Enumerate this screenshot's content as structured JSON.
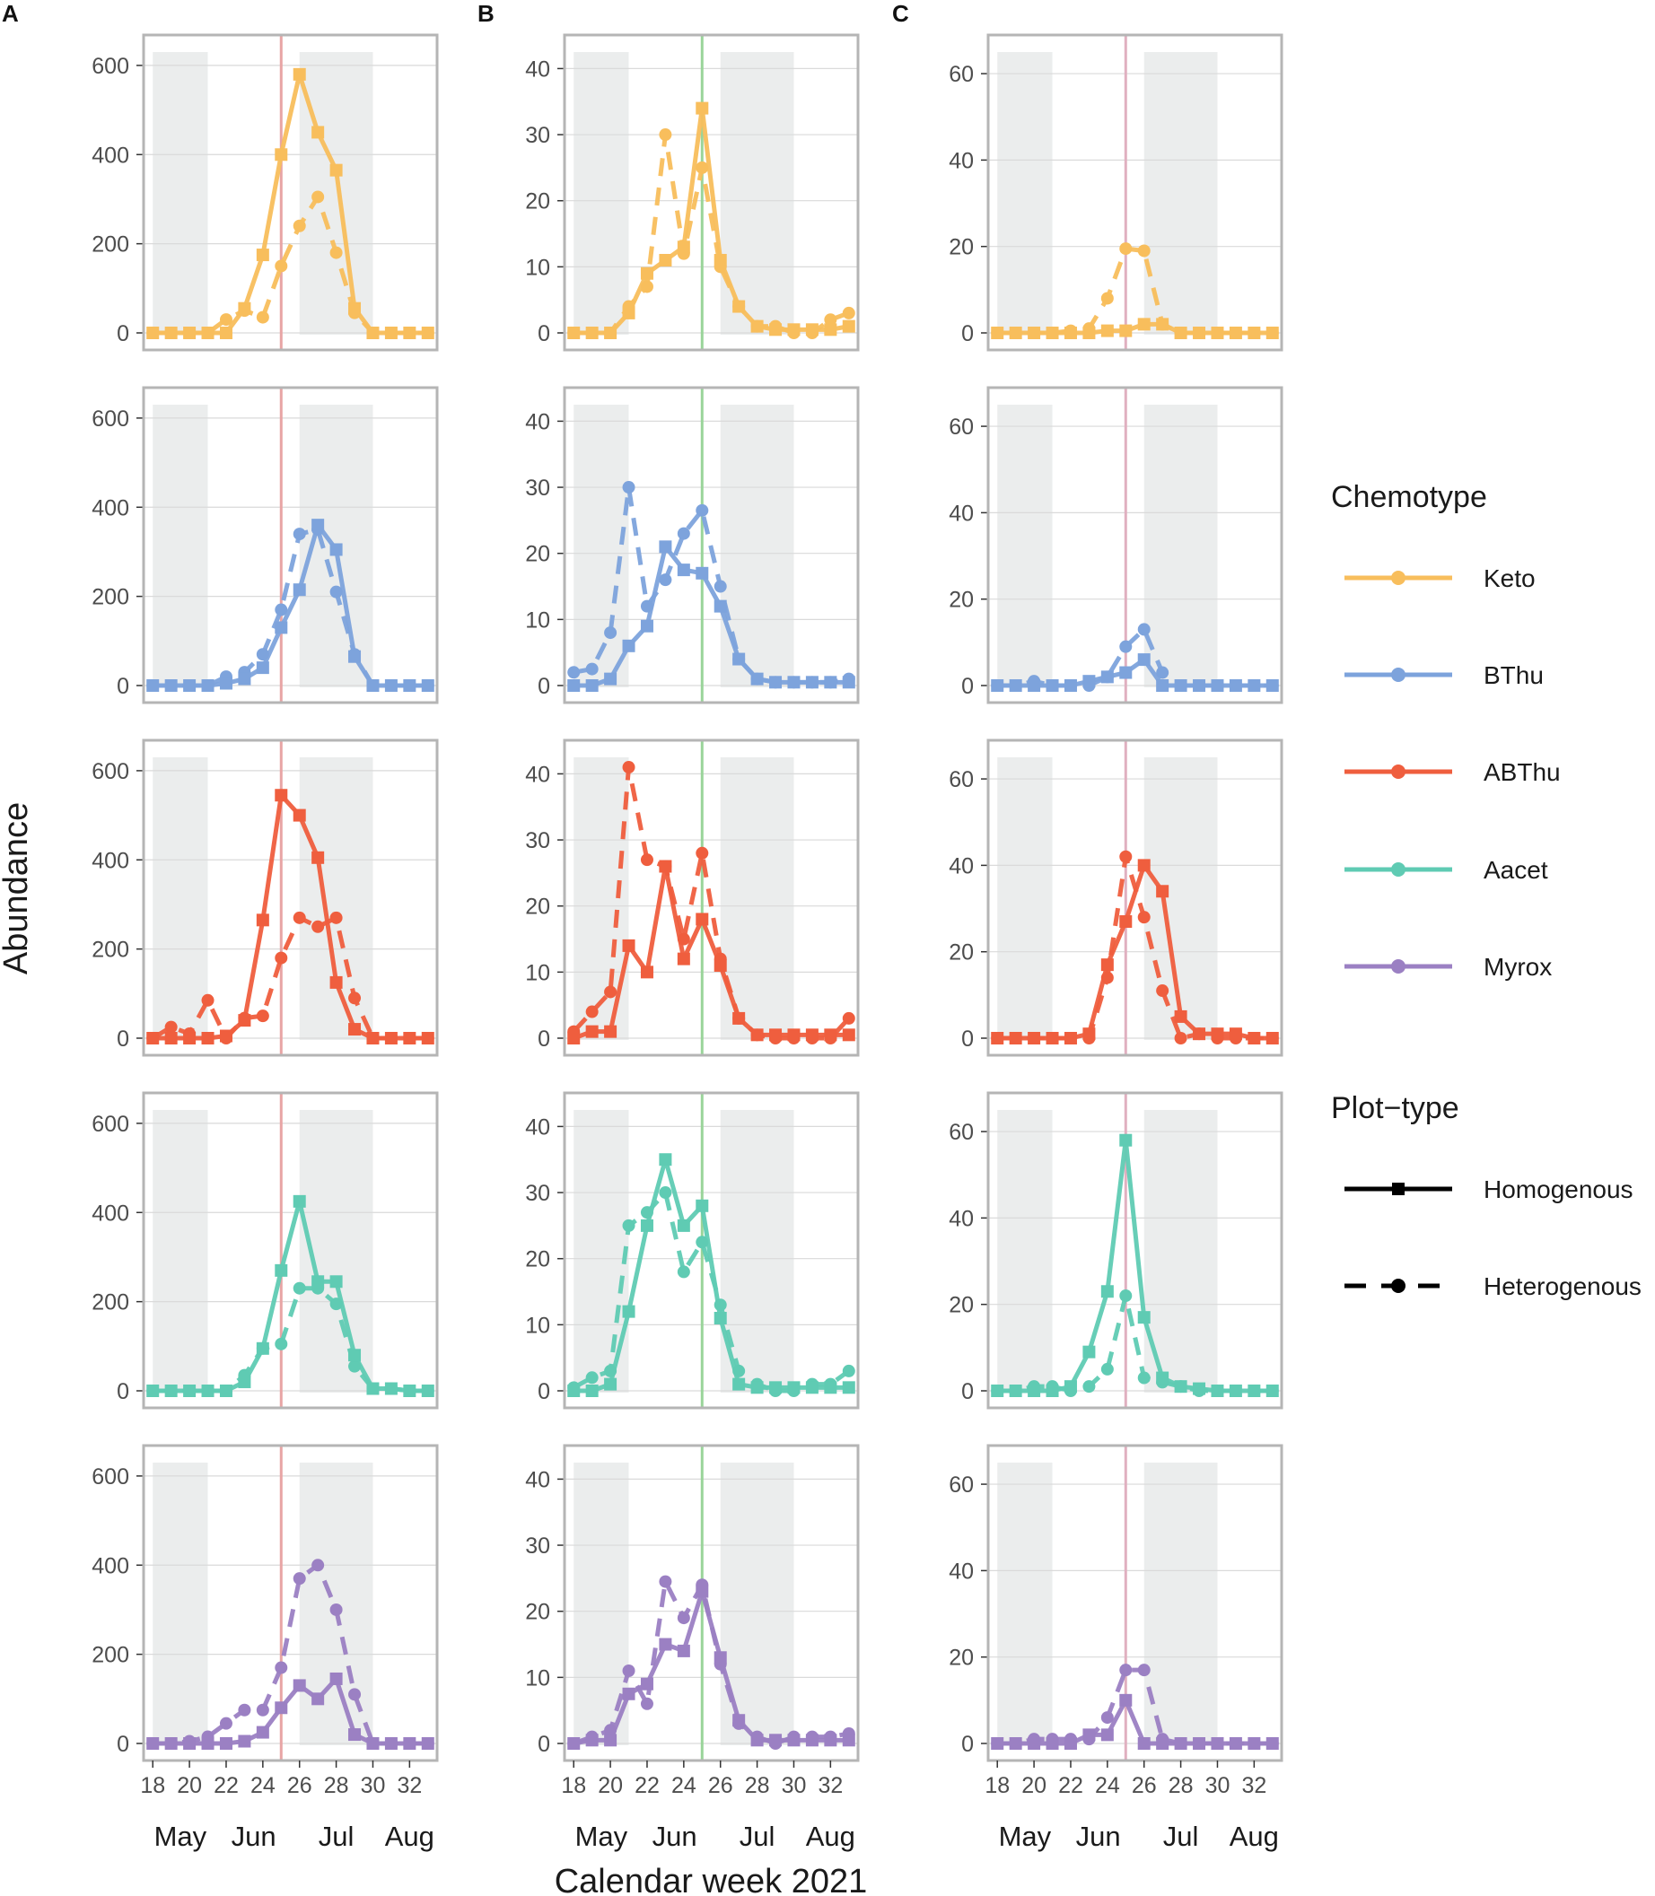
{
  "figure": {
    "panel_letters": [
      "A",
      "B",
      "C"
    ],
    "ylabel": "Abundance",
    "xlabel": "Calendar week 2021"
  },
  "legend": {
    "chemotype_title": "Chemotype",
    "chemotypes": [
      {
        "name": "Keto",
        "color": "#F8BE5C"
      },
      {
        "name": "BThu",
        "color": "#7DA3DC"
      },
      {
        "name": "ABThu",
        "color": "#EF5E3E"
      },
      {
        "name": "Aacet",
        "color": "#5FCBB3"
      },
      {
        "name": "Myrox",
        "color": "#9B80C3"
      }
    ],
    "plottype_title": "Plot−type",
    "plottypes": [
      {
        "name": "Homogenous",
        "style": "solid",
        "marker": "square"
      },
      {
        "name": "Heterogenous",
        "style": "dashed",
        "marker": "circle"
      }
    ]
  },
  "chart_data": {
    "type": "line",
    "x": [
      18,
      19,
      20,
      21,
      22,
      23,
      24,
      25,
      26,
      27,
      28,
      29,
      30,
      31,
      32,
      33
    ],
    "x_ticks": [
      "18",
      "20",
      "22",
      "24",
      "26",
      "28",
      "30",
      "32"
    ],
    "xlim": [
      17.5,
      33.5
    ],
    "months": [
      {
        "label": "May",
        "week": 19.5
      },
      {
        "label": "Jun",
        "week": 23.5
      },
      {
        "label": "Jul",
        "week": 28
      },
      {
        "label": "Aug",
        "week": 32
      }
    ],
    "shaded_week_ranges": [
      [
        18,
        21
      ],
      [
        26,
        30
      ]
    ],
    "columns": [
      {
        "panel": "A",
        "ylim": [
          0,
          630
        ],
        "y_ticks": [
          "0",
          "200",
          "400",
          "600"
        ],
        "vline": {
          "week": 25,
          "color": "#E8A5A5"
        },
        "rows": [
          {
            "chemotype": "Keto",
            "homogenous": [
              0,
              0,
              0,
              0,
              0,
              55,
              175,
              400,
              580,
              450,
              365,
              55,
              0,
              0,
              0,
              0
            ],
            "heterogenous": [
              0,
              0,
              0,
              0,
              30,
              50,
              35,
              150,
              240,
              305,
              180,
              45,
              0,
              0,
              0,
              0
            ]
          },
          {
            "chemotype": "BThu",
            "homogenous": [
              0,
              0,
              0,
              0,
              5,
              15,
              40,
              130,
              215,
              360,
              305,
              65,
              0,
              0,
              0,
              0
            ],
            "heterogenous": [
              0,
              0,
              0,
              0,
              20,
              30,
              70,
              170,
              340,
              350,
              210,
              70,
              0,
              0,
              0,
              0
            ]
          },
          {
            "chemotype": "ABThu",
            "homogenous": [
              0,
              0,
              0,
              0,
              5,
              40,
              265,
              545,
              500,
              405,
              125,
              20,
              0,
              0,
              0,
              0
            ],
            "heterogenous": [
              0,
              25,
              10,
              85,
              0,
              45,
              50,
              180,
              270,
              250,
              270,
              90,
              0,
              0,
              0,
              0
            ]
          },
          {
            "chemotype": "Aacet",
            "homogenous": [
              0,
              0,
              0,
              0,
              0,
              20,
              95,
              270,
              425,
              245,
              245,
              80,
              5,
              5,
              0,
              0
            ],
            "heterogenous": [
              0,
              0,
              0,
              0,
              0,
              35,
              95,
              105,
              230,
              230,
              195,
              55,
              5,
              5,
              0,
              0
            ]
          },
          {
            "chemotype": "Myrox",
            "homogenous": [
              0,
              0,
              0,
              0,
              0,
              5,
              25,
              80,
              130,
              100,
              145,
              20,
              0,
              0,
              0,
              0
            ],
            "heterogenous": [
              0,
              0,
              5,
              15,
              45,
              75,
              75,
              170,
              370,
              400,
              300,
              110,
              0,
              0,
              0,
              0
            ]
          }
        ]
      },
      {
        "panel": "B",
        "ylim": [
          0,
          42.5
        ],
        "y_ticks": [
          "0",
          "10",
          "20",
          "30",
          "40"
        ],
        "vline": {
          "week": 25,
          "color": "#9AD49A"
        },
        "rows": [
          {
            "chemotype": "Keto",
            "homogenous": [
              0,
              0,
              0,
              3,
              9,
              11,
              13,
              34,
              11,
              4,
              1,
              0.5,
              0.5,
              0.5,
              0.5,
              1
            ],
            "heterogenous": [
              0,
              0,
              0,
              4,
              7,
              30,
              12,
              25,
              10,
              4,
              1,
              1,
              0,
              0,
              2,
              3
            ]
          },
          {
            "chemotype": "BThu",
            "homogenous": [
              0,
              0,
              1,
              6,
              9,
              21,
              17.5,
              17,
              12,
              4,
              1,
              0.5,
              0.5,
              0.5,
              0.5,
              0.5
            ],
            "heterogenous": [
              2,
              2.5,
              8,
              30,
              12,
              16,
              23,
              26.5,
              15,
              4,
              1,
              0.5,
              0.5,
              0.5,
              0.5,
              1
            ]
          },
          {
            "chemotype": "ABThu",
            "homogenous": [
              0,
              1,
              1,
              14,
              10,
              26,
              12,
              18,
              11,
              3,
              0.5,
              0.5,
              0.5,
              0.5,
              0.5,
              0.5
            ],
            "heterogenous": [
              1,
              4,
              7,
              41,
              27,
              26,
              15,
              28,
              12,
              3,
              0.5,
              0,
              0,
              0,
              0,
              3
            ]
          },
          {
            "chemotype": "Aacet",
            "homogenous": [
              0,
              0,
              1,
              12,
              25,
              35,
              25,
              28,
              11,
              1,
              0.5,
              0.5,
              0.5,
              0.5,
              0.5,
              0.5
            ],
            "heterogenous": [
              0.5,
              2,
              3,
              25,
              27,
              30,
              18,
              22.5,
              13,
              3,
              1,
              0,
              0,
              1,
              1,
              3
            ]
          },
          {
            "chemotype": "Myrox",
            "homogenous": [
              0,
              0.5,
              0.5,
              7.5,
              9,
              15,
              14,
              23,
              13,
              3.5,
              0.5,
              0.5,
              0.5,
              0.5,
              0.5,
              0.5
            ],
            "heterogenous": [
              0,
              1,
              2,
              11,
              6,
              24.5,
              19,
              24,
              12,
              3,
              1,
              0,
              1,
              1,
              1,
              1.5
            ]
          }
        ]
      },
      {
        "panel": "C",
        "ylim": [
          0,
          65
        ],
        "y_ticks": [
          "0",
          "20",
          "40",
          "60"
        ],
        "vline": {
          "week": 25,
          "color": "#E0B0C0"
        },
        "rows": [
          {
            "chemotype": "Keto",
            "homogenous": [
              0,
              0,
              0,
              0,
              0,
              0,
              0.5,
              0.5,
              2,
              2,
              0,
              0,
              0,
              0,
              0,
              0
            ],
            "heterogenous": [
              0,
              0,
              0,
              0,
              0.5,
              1,
              8,
              19.5,
              19,
              2,
              0,
              0,
              0,
              0,
              0,
              0
            ]
          },
          {
            "chemotype": "BThu",
            "homogenous": [
              0,
              0,
              0,
              0,
              0,
              1,
              2,
              3,
              6,
              0,
              0,
              0,
              0,
              0,
              0,
              0
            ],
            "heterogenous": [
              0,
              0,
              1,
              0,
              0,
              0,
              2,
              9,
              13,
              3,
              0,
              0,
              0,
              0,
              0,
              0
            ]
          },
          {
            "chemotype": "ABThu",
            "homogenous": [
              0,
              0,
              0,
              0,
              0,
              1,
              17,
              27,
              40,
              34,
              5,
              1,
              1,
              1,
              0,
              0
            ],
            "heterogenous": [
              0,
              0,
              0,
              0,
              0,
              0,
              14,
              42,
              28,
              11,
              0,
              1,
              0,
              0,
              0,
              0
            ]
          },
          {
            "chemotype": "Aacet",
            "homogenous": [
              0,
              0,
              0,
              0,
              1,
              9,
              23,
              58,
              17,
              3,
              1,
              0.5,
              0,
              0,
              0,
              0
            ],
            "heterogenous": [
              0,
              0,
              1,
              1,
              0,
              1,
              5,
              22,
              3,
              2,
              1,
              0,
              0,
              0,
              0,
              0
            ]
          },
          {
            "chemotype": "Myrox",
            "homogenous": [
              0,
              0,
              0,
              0,
              0,
              2,
              2,
              10,
              0,
              0,
              0,
              0,
              0,
              0,
              0,
              0
            ],
            "heterogenous": [
              0,
              0,
              1,
              1,
              1,
              1,
              6,
              17,
              17,
              1,
              0,
              0,
              0,
              0,
              0,
              0
            ]
          }
        ]
      }
    ]
  }
}
